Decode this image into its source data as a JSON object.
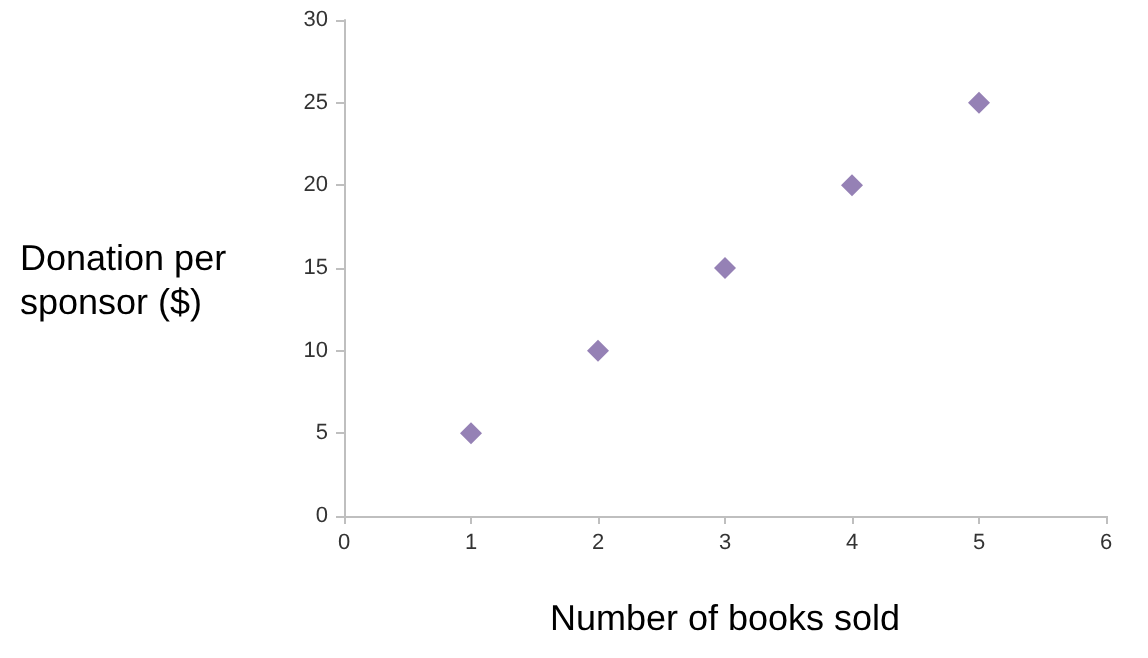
{
  "chart_data": {
    "type": "scatter",
    "xlabel": "Number of books sold",
    "ylabel": "Donation per sponsor ($)",
    "x": [
      1,
      2,
      3,
      4,
      5
    ],
    "series": [
      {
        "color": "#7b62a3",
        "values": [
          5,
          10,
          15,
          20,
          25
        ]
      }
    ],
    "xlim": [
      0,
      6
    ],
    "xticks": [
      0,
      1,
      2,
      3,
      4,
      5,
      6
    ],
    "ylim": [
      0,
      30
    ],
    "yticks": [
      0,
      5,
      10,
      15,
      20,
      25,
      30
    ],
    "marker": "diamond",
    "grid": false
  }
}
